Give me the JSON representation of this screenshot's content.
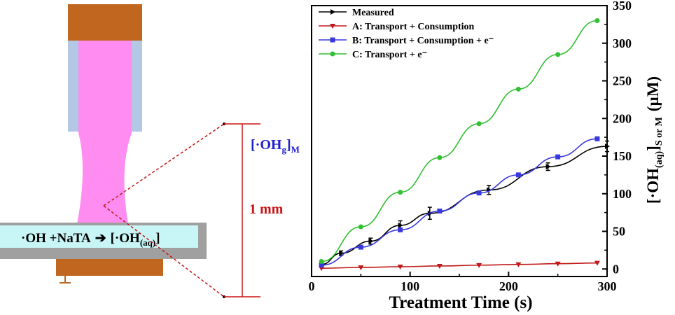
{
  "schematic": {
    "reaction_lhs": "·OH +NaTA",
    "reaction_arrow": "➔",
    "reaction_rhs_pre": "[·OH",
    "reaction_rhs_sub": "(aq)",
    "reaction_rhs_post": "]",
    "gas_label_pre": "[·OH",
    "gas_label_sub": "g",
    "gas_label_post": "]",
    "gas_label_tail_sub": "M",
    "distance_label": "1 mm",
    "colors": {
      "electrode": "#c0661f",
      "tube": "#b4c8e6",
      "plasma": "#ff8cf0",
      "liquid": "#c8f5f5",
      "dish": "#a0a0a0",
      "gas_label": "#2020d0",
      "distance": "#c81414"
    }
  },
  "chart_data": {
    "type": "line",
    "xlabel": "Treatment Time (s)",
    "ylabel": {
      "pre": "[·OH",
      "sub1": "(aq)",
      "mid": "]",
      "sub2": "S or M",
      "unit": "(µM)"
    },
    "xlim": [
      0,
      300
    ],
    "ylim": [
      -10,
      350
    ],
    "xticks": [
      0,
      100,
      200,
      300
    ],
    "yticks": [
      0,
      50,
      100,
      150,
      200,
      250,
      300,
      350
    ],
    "legend_position": "top-left",
    "grid": false,
    "series": [
      {
        "name": "Measured",
        "color": "#000000",
        "marker": "triangle-right",
        "x": [
          10,
          30,
          60,
          90,
          120,
          180,
          240,
          300
        ],
        "y": [
          6,
          21,
          37,
          58,
          74,
          105,
          136,
          163
        ],
        "err": [
          2,
          3,
          4,
          6,
          8,
          6,
          5,
          7
        ]
      },
      {
        "name": "A: Transport + Consumption",
        "color": "#c01818",
        "marker": "triangle-down",
        "x": [
          10,
          50,
          90,
          130,
          170,
          210,
          250,
          290
        ],
        "y": [
          1,
          2,
          3,
          4,
          5,
          6,
          7,
          8
        ]
      },
      {
        "name": "B: Transport + Consumption + e⁻",
        "color": "#3838e0",
        "marker": "square",
        "x": [
          10,
          50,
          90,
          130,
          170,
          210,
          250,
          290
        ],
        "y": [
          5,
          29,
          52,
          77,
          101,
          125,
          149,
          173
        ]
      },
      {
        "name": "C: Transport + e⁻",
        "color": "#30c030",
        "marker": "circle",
        "x": [
          10,
          50,
          90,
          130,
          170,
          210,
          250,
          290
        ],
        "y": [
          10,
          56,
          102,
          148,
          193,
          239,
          285,
          330
        ]
      }
    ]
  }
}
